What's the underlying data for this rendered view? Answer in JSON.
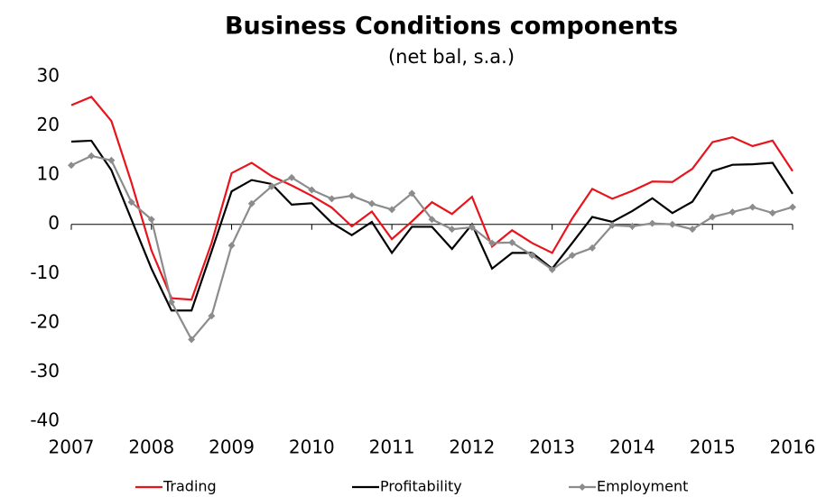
{
  "chart_data": {
    "type": "line",
    "title": "Business Conditions components",
    "subtitle": "(net bal, s.a.)",
    "x": [
      2007,
      2007.25,
      2007.5,
      2007.75,
      2008,
      2008.25,
      2008.5,
      2008.75,
      2009,
      2009.25,
      2009.5,
      2009.75,
      2010,
      2010.25,
      2010.5,
      2010.75,
      2011,
      2011.25,
      2011.5,
      2011.75,
      2012,
      2012.25,
      2012.5,
      2012.75,
      2013,
      2013.25,
      2013.5,
      2013.75,
      2014,
      2014.25,
      2014.5,
      2014.75,
      2015,
      2015.25,
      2015.5,
      2015.75,
      2016
    ],
    "series": [
      {
        "name": "Trading",
        "color": "#e8141c",
        "marker": false,
        "values": [
          24.2,
          25.9,
          21,
          8.5,
          -5.3,
          -15,
          -15.3,
          -3.8,
          10.4,
          12.5,
          9.8,
          7.9,
          5.8,
          3.4,
          -0.4,
          2.6,
          -3,
          0.6,
          4.5,
          2.1,
          5.6,
          -4.5,
          -1.2,
          -3.8,
          -5.8,
          1.2,
          7.2,
          5.2,
          6.8,
          8.7,
          8.6,
          11.3,
          16.7,
          17.7,
          15.9,
          17,
          10.8
        ]
      },
      {
        "name": "Profitability",
        "color": "#000000",
        "marker": false,
        "values": [
          16.8,
          17,
          11,
          1,
          -9,
          -17.5,
          -17.5,
          -5.5,
          6.7,
          9,
          8.2,
          4,
          4.3,
          0.3,
          -2.2,
          0.5,
          -5.8,
          -0.5,
          -0.5,
          -5,
          0,
          -9,
          -5.8,
          -5.8,
          -9,
          -3.8,
          1.5,
          0.5,
          2.7,
          5.3,
          2.3,
          4.6,
          10.8,
          12.1,
          12.2,
          12.5,
          6.2
        ]
      },
      {
        "name": "Employment",
        "color": "#8c8c8c",
        "marker": true,
        "values": [
          12,
          13.9,
          13,
          4.5,
          1,
          -15.8,
          -23.4,
          -18.6,
          -4.3,
          4.2,
          7.7,
          9.5,
          7,
          5.2,
          5.8,
          4.2,
          3,
          6.3,
          1,
          -1,
          -0.6,
          -3.8,
          -3.7,
          -6.3,
          -9.2,
          -6.3,
          -4.8,
          -0.2,
          -0.4,
          0.2,
          0,
          -1,
          1.5,
          2.5,
          3.5,
          2.3,
          3.5
        ]
      }
    ],
    "xlim": [
      2007,
      2016
    ],
    "xticks": [
      2007,
      2008,
      2009,
      2010,
      2011,
      2012,
      2013,
      2014,
      2015,
      2016
    ],
    "ylim": [
      -40,
      30
    ],
    "yticks": [
      -40,
      -30,
      -20,
      -10,
      0,
      10,
      20,
      30
    ],
    "grid": false,
    "legend": "bottom"
  }
}
